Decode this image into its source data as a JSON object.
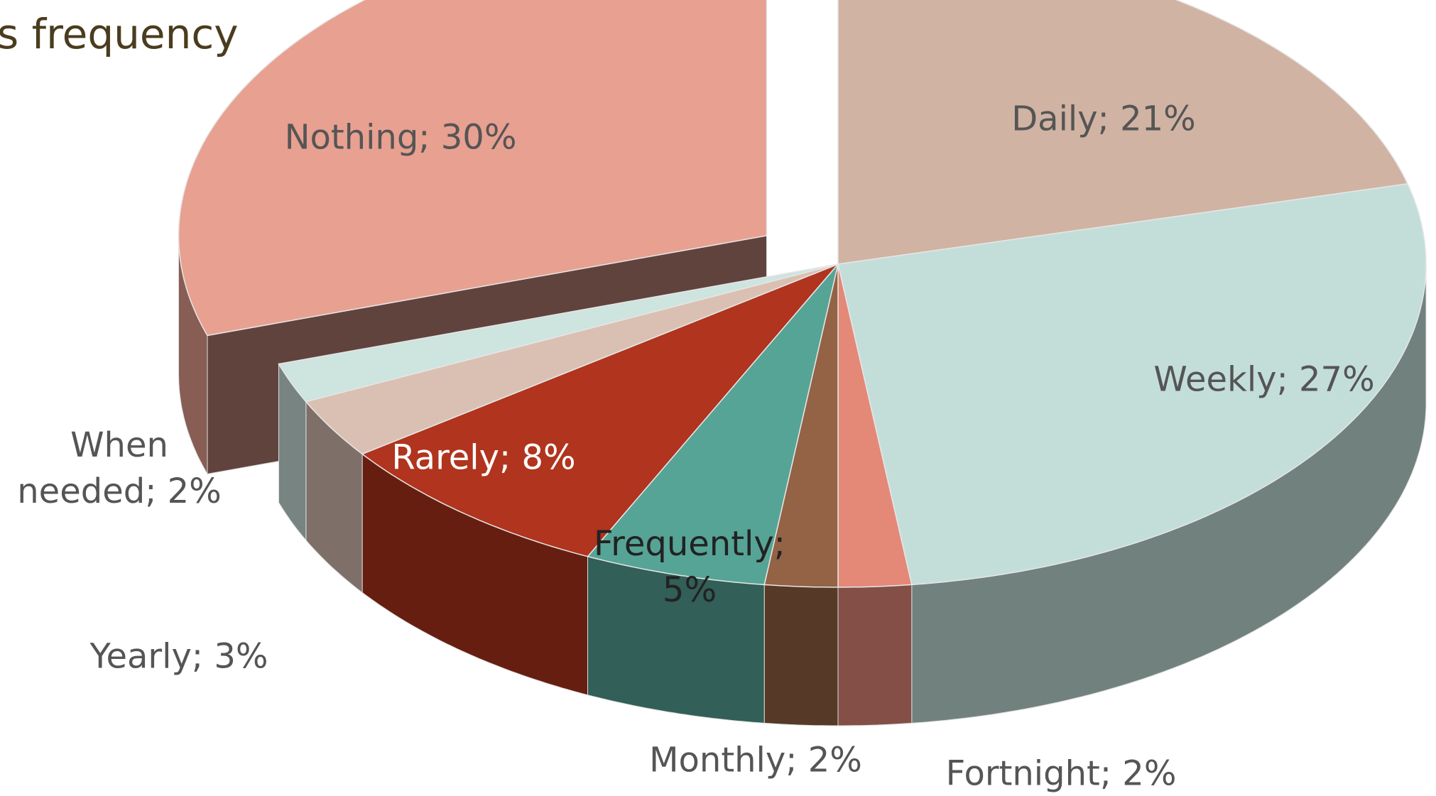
{
  "chart_data": {
    "type": "pie",
    "title": "s frequency",
    "categories": [
      "Daily",
      "Weekly",
      "Fortnight",
      "Monthly",
      "Frequently",
      "Rarely",
      "Yearly",
      "When needed",
      "Nothing"
    ],
    "values": [
      21,
      27,
      2,
      2,
      5,
      8,
      3,
      2,
      30
    ],
    "value_labels": [
      "Daily; 21%",
      "Weekly; 27%",
      "Fortnight; 2%",
      "Monthly; 2%",
      "Frequently; 5%",
      "Rarely; 8%",
      "Yearly; 3%",
      "When needed; 2%",
      "Nothing; 30%"
    ],
    "colors": [
      "#d0b3a3",
      "#c3ded9",
      "#e48878",
      "#946244",
      "#56a496",
      "#b0341e",
      "#dac0b3",
      "#cde4df",
      "#e8a091"
    ]
  }
}
